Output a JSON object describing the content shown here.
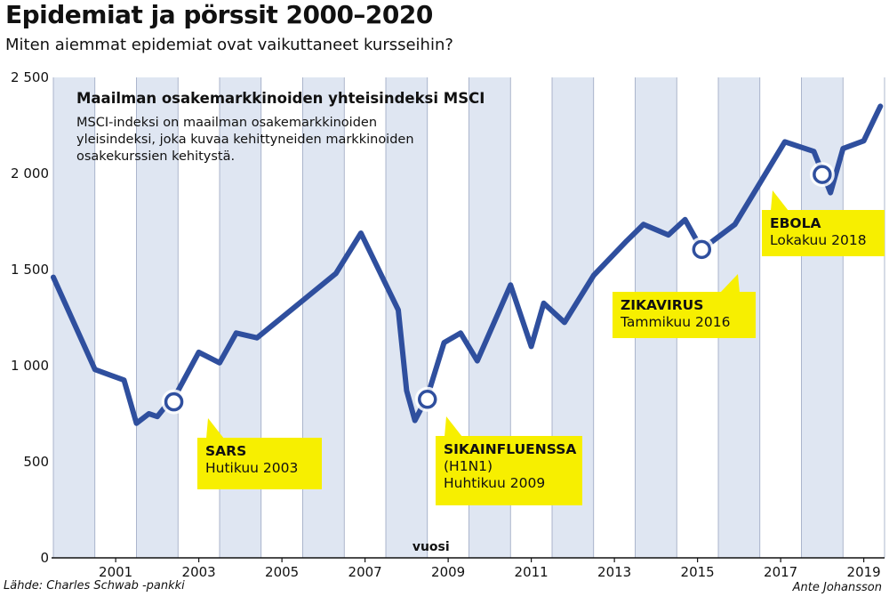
{
  "header": {
    "title": "Epidemiat ja pörssit 2000–2020",
    "subtitle": "Miten aiemmat epidemiat ovat vaikuttaneet kursseihin?"
  },
  "panel": {
    "title": "Maailman osakemarkkinoiden yhteisindeksi MSCI",
    "desc": [
      "MSCI-indeksi on maailman osakemarkkinoiden",
      "yleisindeksi, joka kuvaa kehittyneiden markkinoiden",
      "osakekurssien kehitystä."
    ]
  },
  "footer": {
    "source": "Lähde: Charles Schwab -pankki",
    "credit": "Ante Johansson"
  },
  "chart_data": {
    "type": "line",
    "xlabel": "vuosi",
    "ylabel": "",
    "xlim": [
      2000,
      2020
    ],
    "ylim": [
      0,
      2500
    ],
    "y_ticks": [
      0,
      500,
      1000,
      1500,
      2000,
      2500
    ],
    "y_tick_labels": [
      "0",
      "500",
      "1 000",
      "1 500",
      "2 000",
      "2 500"
    ],
    "x_ticks": [
      2001,
      2003,
      2005,
      2007,
      2009,
      2011,
      2013,
      2015,
      2017,
      2019
    ],
    "x_tick_labels": [
      "2001",
      "2003",
      "2005",
      "2007",
      "2009",
      "2011",
      "2013",
      "2015",
      "2017",
      "2019"
    ],
    "grid": "alternating vertical bands per year",
    "colors": {
      "line": "#2f4f9e",
      "band": "#dfe6f2",
      "callout": "#f7ef00"
    },
    "series": [
      {
        "points": [
          [
            2000.0,
            1460
          ],
          [
            2001.0,
            980
          ],
          [
            2001.7,
            925
          ],
          [
            2002.0,
            700
          ],
          [
            2002.3,
            750
          ],
          [
            2002.5,
            735
          ],
          [
            2003.0,
            870
          ],
          [
            2003.5,
            1070
          ],
          [
            2004.0,
            1015
          ],
          [
            2004.4,
            1170
          ],
          [
            2004.9,
            1145
          ],
          [
            2006.8,
            1480
          ],
          [
            2007.4,
            1690
          ],
          [
            2008.3,
            1290
          ],
          [
            2008.5,
            870
          ],
          [
            2008.7,
            715
          ],
          [
            2009.0,
            840
          ],
          [
            2009.4,
            1120
          ],
          [
            2009.8,
            1170
          ],
          [
            2010.2,
            1025
          ],
          [
            2011.0,
            1420
          ],
          [
            2011.5,
            1100
          ],
          [
            2011.8,
            1325
          ],
          [
            2012.3,
            1225
          ],
          [
            2013.0,
            1470
          ],
          [
            2013.8,
            1650
          ],
          [
            2014.2,
            1735
          ],
          [
            2014.8,
            1680
          ],
          [
            2015.2,
            1760
          ],
          [
            2015.6,
            1605
          ],
          [
            2016.4,
            1735
          ],
          [
            2017.6,
            2165
          ],
          [
            2018.3,
            2115
          ],
          [
            2018.7,
            1900
          ],
          [
            2019.0,
            2130
          ],
          [
            2019.5,
            2170
          ],
          [
            2019.9,
            2350
          ]
        ]
      }
    ],
    "annotations": [
      {
        "name": "SARS",
        "date": "Hutikuu 2003",
        "x": 2002.9,
        "y": 812
      },
      {
        "name": "SIKAINFLUENSSA",
        "name2": "(H1N1)",
        "date": "Huhtikuu 2009",
        "x": 2009.0,
        "y": 825
      },
      {
        "name": "ZIKAVIRUS",
        "date": "Tammikuu 2016",
        "x": 2015.6,
        "y": 1605
      },
      {
        "name": "EBOLA",
        "date": "Lokakuu 2018",
        "x": 2018.5,
        "y": 1995
      }
    ]
  }
}
